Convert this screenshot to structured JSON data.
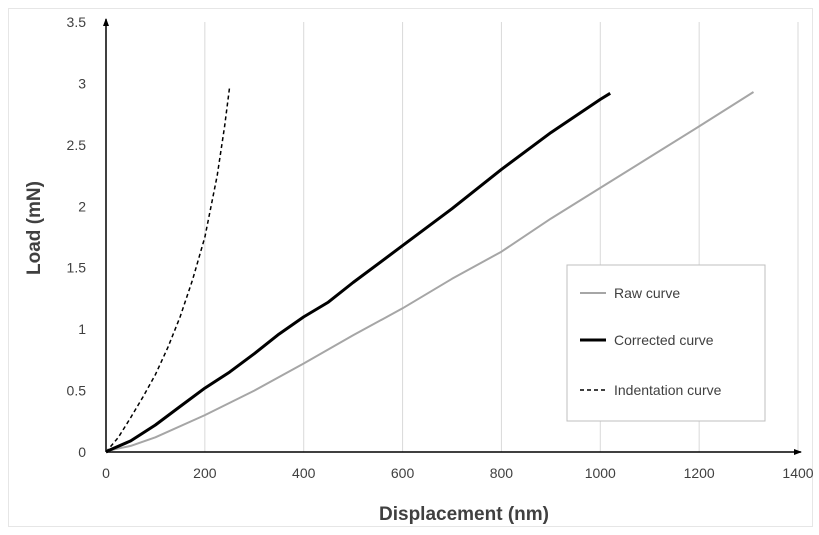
{
  "chart_data": {
    "type": "line",
    "xlabel": "Displacement (nm)",
    "ylabel": "Load (mN)",
    "xlim": [
      0,
      1400
    ],
    "ylim": [
      0,
      3.5
    ],
    "xticks": [
      "0",
      "200",
      "400",
      "600",
      "800",
      "1000",
      "1200",
      "1400"
    ],
    "yticks": [
      "0",
      "0.5",
      "1",
      "1.5",
      "2",
      "2.5",
      "3",
      "3.5"
    ],
    "grid": "vertical",
    "legend_position": "right",
    "series": [
      {
        "name": "Raw curve",
        "color": "#a6a6a6",
        "style": "solid",
        "points": [
          [
            0,
            0
          ],
          [
            15,
            0.02
          ],
          [
            50,
            0.05
          ],
          [
            100,
            0.12
          ],
          [
            200,
            0.3
          ],
          [
            300,
            0.5
          ],
          [
            400,
            0.72
          ],
          [
            500,
            0.95
          ],
          [
            600,
            1.17
          ],
          [
            700,
            1.41
          ],
          [
            800,
            1.63
          ],
          [
            900,
            1.9
          ],
          [
            1000,
            2.15
          ],
          [
            1100,
            2.4
          ],
          [
            1200,
            2.65
          ],
          [
            1310,
            2.93
          ]
        ]
      },
      {
        "name": "Corrected curve",
        "color": "#000000",
        "style": "solid",
        "points": [
          [
            0,
            0
          ],
          [
            10,
            0.02
          ],
          [
            50,
            0.09
          ],
          [
            100,
            0.22
          ],
          [
            150,
            0.37
          ],
          [
            200,
            0.52
          ],
          [
            250,
            0.65
          ],
          [
            300,
            0.8
          ],
          [
            350,
            0.96
          ],
          [
            400,
            1.1
          ],
          [
            450,
            1.22
          ],
          [
            500,
            1.38
          ],
          [
            600,
            1.68
          ],
          [
            700,
            1.98
          ],
          [
            800,
            2.3
          ],
          [
            900,
            2.6
          ],
          [
            1000,
            2.87
          ],
          [
            1020,
            2.92
          ]
        ]
      },
      {
        "name": "Indentation curve",
        "color": "#000000",
        "style": "dashed",
        "points": [
          [
            0,
            0
          ],
          [
            25,
            0.12
          ],
          [
            50,
            0.28
          ],
          [
            75,
            0.45
          ],
          [
            100,
            0.63
          ],
          [
            125,
            0.85
          ],
          [
            150,
            1.1
          ],
          [
            175,
            1.4
          ],
          [
            200,
            1.75
          ],
          [
            225,
            2.25
          ],
          [
            240,
            2.65
          ],
          [
            250,
            2.97
          ]
        ]
      }
    ]
  }
}
